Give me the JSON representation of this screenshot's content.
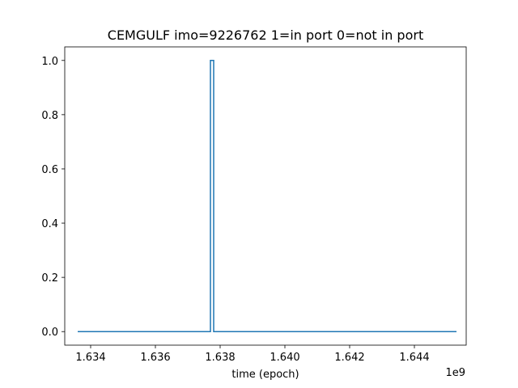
{
  "chart_data": {
    "type": "line",
    "title": "CEMGULF imo=9226762 1=in port 0=not in port",
    "xlabel": "time (epoch)",
    "ylabel": "",
    "x_offset_label": "1e9",
    "x_scale": 1000000000,
    "xlim": [
      1.6332,
      1.6456
    ],
    "ylim": [
      -0.05,
      1.05
    ],
    "x_ticks": [
      1.634,
      1.636,
      1.638,
      1.64,
      1.642,
      1.644
    ],
    "x_tick_labels": [
      "1.634",
      "1.636",
      "1.638",
      "1.640",
      "1.642",
      "1.644"
    ],
    "y_ticks": [
      0.0,
      0.2,
      0.4,
      0.6,
      0.8,
      1.0
    ],
    "y_tick_labels": [
      "0.0",
      "0.2",
      "0.4",
      "0.6",
      "0.8",
      "1.0"
    ],
    "grid": false,
    "series": [
      {
        "color": "#1f77b4",
        "x": [
          1.6336,
          1.6377,
          1.6377,
          1.6378,
          1.6378,
          1.6453
        ],
        "y": [
          0,
          0,
          1,
          1,
          0,
          0
        ]
      }
    ]
  }
}
